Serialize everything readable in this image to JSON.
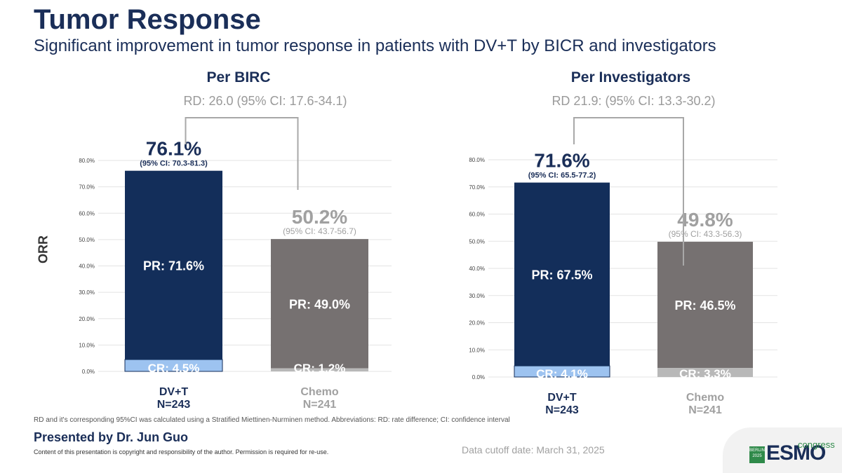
{
  "header": {
    "title": "Tumor Response",
    "subtitle": "Significant improvement in tumor response in patients with DV+T by BICR and investigators"
  },
  "y_axis_label": "ORR",
  "colors": {
    "navy": "#132e5a",
    "gray": "#767171",
    "light_blue": "#9dc3f0",
    "light_gray": "#b8b8b8",
    "muted_text": "#a0a0a0",
    "title": "#1a2e58"
  },
  "chart_data": [
    {
      "type": "bar",
      "title": "Per BIRC",
      "rd_label": "RD: 26.0 (95% CI: 17.6-34.1)",
      "ylabel": "ORR",
      "ylim": [
        0,
        80
      ],
      "yticks": [
        "0.0%",
        "10.0%",
        "20.0%",
        "30.0%",
        "40.0%",
        "50.0%",
        "60.0%",
        "70.0%",
        "80.0%"
      ],
      "grid": true,
      "stacked": true,
      "categories": [
        {
          "label": "DV+T",
          "n": "N=243"
        },
        {
          "label": "Chemo",
          "n": "N=241"
        }
      ],
      "series": [
        {
          "name": "CR",
          "values": [
            4.5,
            1.2
          ],
          "labels": [
            "CR: 4.5%",
            "CR: 1.2%"
          ]
        },
        {
          "name": "PR",
          "values": [
            71.6,
            49.0
          ],
          "labels": [
            "PR: 71.6%",
            "PR: 49.0%"
          ]
        }
      ],
      "totals": [
        76.1,
        50.2
      ],
      "total_labels": [
        "76.1%",
        "50.2%"
      ],
      "ci_labels": [
        "(95% CI: 70.3-81.3)",
        "(95% CI: 43.7-56.7)"
      ]
    },
    {
      "type": "bar",
      "title": "Per Investigators",
      "rd_label": "RD 21.9: (95% CI: 13.3-30.2)",
      "ylim": [
        0,
        80
      ],
      "yticks": [
        "0.0%",
        "10.0%",
        "20.0%",
        "30.0%",
        "40.0%",
        "50.0%",
        "60.0%",
        "70.0%",
        "80.0%"
      ],
      "grid": true,
      "stacked": true,
      "categories": [
        {
          "label": "DV+T",
          "n": "N=243"
        },
        {
          "label": "Chemo",
          "n": "N=241"
        }
      ],
      "series": [
        {
          "name": "CR",
          "values": [
            4.1,
            3.3
          ],
          "labels": [
            "CR: 4.1%",
            "CR: 3.3%"
          ]
        },
        {
          "name": "PR",
          "values": [
            67.5,
            46.5
          ],
          "labels": [
            "PR: 67.5%",
            "PR: 46.5%"
          ]
        }
      ],
      "totals": [
        71.6,
        49.8
      ],
      "total_labels": [
        "71.6%",
        "49.8%"
      ],
      "ci_labels": [
        "(95% CI: 65.5-77.2)",
        "(95% CI: 43.3-56.3)"
      ]
    }
  ],
  "footer": {
    "footnote": "RD and it's corresponding 95%CI was calculated using a Stratified Miettinen-Nurminen method. Abbreviations: RD: rate difference; CI: confidence interval",
    "presenter": "Presented by Dr. Jun Guo",
    "copyright": "Content of this presentation is copyright and responsibility of the author. Permission is required for re-use.",
    "cutoff": "Data cutoff date: March 31, 2025"
  },
  "logo": {
    "city": "BERLIN",
    "year": "2025",
    "brand": "ESMO",
    "suffix": "congress"
  }
}
